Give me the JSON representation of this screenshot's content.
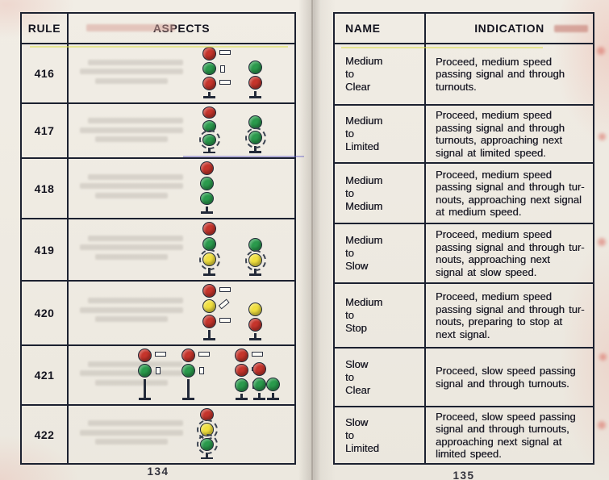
{
  "left": {
    "page_number": "134",
    "table": {
      "headers": [
        "RULE",
        "ASPECTS"
      ],
      "rows": [
        {
          "rule": "416",
          "masts": [
            {
              "type": "high",
              "lights": [
                {
                  "color": "red",
                  "plate": "h"
                },
                {
                  "color": "green",
                  "plate": "v"
                },
                {
                  "color": "red",
                  "plate": "h"
                }
              ]
            },
            {
              "type": "dwarf",
              "lights": [
                {
                  "color": "green"
                },
                {
                  "color": "red"
                }
              ]
            }
          ]
        },
        {
          "rule": "417",
          "masts": [
            {
              "type": "high",
              "lights": [
                {
                  "color": "red"
                },
                {
                  "color": "green"
                },
                {
                  "color": "green",
                  "flashing": true
                }
              ]
            },
            {
              "type": "dwarf",
              "lights": [
                {
                  "color": "green"
                },
                {
                  "color": "green",
                  "flashing": true
                }
              ]
            }
          ]
        },
        {
          "rule": "418",
          "masts": [
            {
              "type": "high",
              "lights": [
                {
                  "color": "red"
                },
                {
                  "color": "green"
                },
                {
                  "color": "green"
                }
              ]
            }
          ]
        },
        {
          "rule": "419",
          "masts": [
            {
              "type": "high",
              "lights": [
                {
                  "color": "red"
                },
                {
                  "color": "green"
                },
                {
                  "color": "yellow",
                  "flashing": true
                }
              ]
            },
            {
              "type": "dwarf",
              "lights": [
                {
                  "color": "green"
                },
                {
                  "color": "yellow",
                  "flashing": true
                }
              ]
            }
          ]
        },
        {
          "rule": "420",
          "masts": [
            {
              "type": "high",
              "lights": [
                {
                  "color": "red",
                  "plate": "h"
                },
                {
                  "color": "yellow",
                  "plate": "d"
                },
                {
                  "color": "red",
                  "plate": "h"
                }
              ]
            },
            {
              "type": "dwarf",
              "lights": [
                {
                  "color": "yellow"
                },
                {
                  "color": "red"
                }
              ]
            }
          ]
        },
        {
          "rule": "421",
          "masts": [
            {
              "type": "high",
              "lights": [
                {
                  "color": "red",
                  "plate": "h"
                },
                {
                  "color": "green",
                  "plate": "v"
                }
              ]
            },
            {
              "type": "high",
              "lights": [
                {
                  "color": "red",
                  "plate": "h"
                },
                {
                  "color": "green",
                  "plate": "v"
                }
              ]
            },
            {
              "type": "high",
              "lights": [
                {
                  "color": "red",
                  "plate": "h"
                },
                {
                  "color": "red",
                  "plate": "h"
                },
                {
                  "color": "green",
                  "plate": "v"
                }
              ]
            },
            {
              "type": "dwarf",
              "lights": [
                {
                  "color": "red"
                },
                {
                  "color": "green"
                }
              ]
            },
            {
              "type": "dwarf",
              "lights": [
                {
                  "color": "green"
                }
              ]
            }
          ]
        },
        {
          "rule": "422",
          "masts": [
            {
              "type": "high",
              "lights": [
                {
                  "color": "red"
                },
                {
                  "color": "yellow",
                  "flashing": true
                },
                {
                  "color": "green",
                  "flashing": true
                }
              ]
            }
          ]
        }
      ]
    }
  },
  "right": {
    "page_number": "135",
    "table": {
      "headers": [
        "NAME",
        "INDICATION"
      ],
      "rows": [
        {
          "name_lines": [
            "Medium",
            "to",
            "Clear"
          ],
          "indication_lines": [
            "Proceed, medium speed",
            "passing signal and through",
            "turnouts."
          ]
        },
        {
          "name_lines": [
            "Medium",
            "to",
            "Limited"
          ],
          "indication_lines": [
            "Proceed, medium speed",
            "passing signal and through",
            "turnouts, approaching next",
            "signal at limited speed."
          ]
        },
        {
          "name_lines": [
            "Medium",
            "to",
            "Medium"
          ],
          "indication_lines": [
            "Proceed, medium speed",
            "passing signal and through tur-",
            "nouts, approaching next signal",
            "at medium speed."
          ]
        },
        {
          "name_lines": [
            "Medium",
            "to",
            "Slow"
          ],
          "indication_lines": [
            "Proceed, medium speed",
            "passing signal and through tur-",
            "nouts, approaching next",
            "signal at slow speed."
          ]
        },
        {
          "name_lines": [
            "Medium",
            "to",
            "Stop"
          ],
          "indication_lines": [
            "Proceed, medium speed",
            "passing signal and through tur-",
            "nouts, preparing to stop at",
            "next signal."
          ]
        },
        {
          "name_lines": [
            "Slow",
            "to",
            "Clear"
          ],
          "indication_lines": [
            "Proceed, slow speed passing",
            "signal and through turnouts."
          ]
        },
        {
          "name_lines": [
            "Slow",
            "to",
            "Limited"
          ],
          "indication_lines": [
            "Proceed, slow speed passing",
            "signal and through turnouts,",
            "approaching next signal at",
            "limited speed."
          ]
        }
      ]
    }
  },
  "colors": {
    "signal_red": "#c5342b",
    "signal_green": "#2a9a4c",
    "signal_yellow": "#f0df3e",
    "ink": "#1c2130",
    "paper": "#ece8df"
  }
}
